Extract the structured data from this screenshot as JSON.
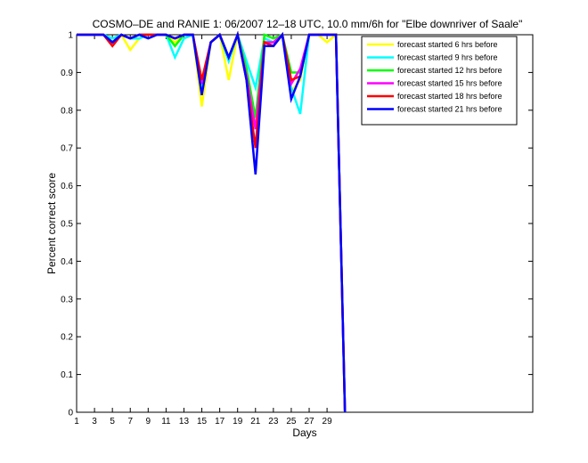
{
  "chart_data": {
    "type": "line",
    "title": "COSMO–DE and RANIE 1: 06/2007 12–18 UTC, 10.0 mm/6h for \"Elbe downriver of Saale\"",
    "xlabel": "Days",
    "ylabel": "Percent correct score",
    "xlim": [
      1,
      52
    ],
    "ylim": [
      0,
      1
    ],
    "xticks": [
      1,
      3,
      5,
      7,
      9,
      11,
      13,
      15,
      17,
      19,
      21,
      23,
      25,
      27,
      29
    ],
    "yticks": [
      0,
      0.1,
      0.2,
      0.3,
      0.4,
      0.5,
      0.6,
      0.7,
      0.8,
      0.9,
      1
    ],
    "ytick_labels": [
      "0",
      "0.1",
      "0.2",
      "0.3",
      "0.4",
      "0.5",
      "0.6",
      "0.7",
      "0.8",
      "0.9",
      "1"
    ],
    "grid": false,
    "legend_position": "top-right",
    "x": [
      1,
      2,
      3,
      4,
      5,
      6,
      7,
      8,
      9,
      10,
      11,
      12,
      13,
      14,
      15,
      16,
      17,
      18,
      19,
      20,
      21,
      22,
      23,
      24,
      25,
      26,
      27,
      28,
      29,
      30,
      31
    ],
    "series": [
      {
        "name": "forecast started 6 hrs before",
        "color": "#ffff00",
        "values": [
          1,
          1,
          1,
          1,
          0.98,
          1,
          0.96,
          0.99,
          1,
          1,
          1,
          0.98,
          1,
          1,
          0.81,
          0.98,
          1,
          0.88,
          1,
          0.9,
          0.77,
          0.99,
          0.98,
          1,
          0.85,
          0.88,
          1,
          1,
          0.98,
          1,
          0
        ]
      },
      {
        "name": "forecast started 9 hrs before",
        "color": "#00ffff",
        "values": [
          1,
          1,
          1,
          1,
          0.99,
          1,
          0.99,
          0.99,
          1,
          1,
          1,
          0.94,
          0.99,
          1,
          0.86,
          0.98,
          1,
          0.93,
          1,
          0.93,
          0.86,
          0.99,
          0.98,
          1,
          0.86,
          0.79,
          1,
          1,
          1,
          1,
          0
        ]
      },
      {
        "name": "forecast started 12 hrs before",
        "color": "#00ff00",
        "values": [
          1,
          1,
          1,
          1,
          0.98,
          1,
          0.99,
          1,
          1,
          1,
          1,
          0.97,
          1,
          1,
          0.87,
          0.98,
          1,
          0.94,
          1,
          0.91,
          0.78,
          1,
          0.99,
          1,
          0.9,
          0.9,
          1,
          1,
          1,
          1,
          0
        ]
      },
      {
        "name": "forecast started 15 hrs before",
        "color": "#ff00ff",
        "values": [
          1,
          1,
          1,
          1,
          0.98,
          1,
          0.99,
          1,
          1,
          1,
          1,
          0.99,
          1,
          1,
          0.87,
          0.98,
          1,
          0.94,
          1,
          0.89,
          0.75,
          0.98,
          0.98,
          1,
          0.87,
          0.91,
          1,
          1,
          1,
          1,
          0
        ]
      },
      {
        "name": "forecast started 18 hrs before",
        "color": "#ff0000",
        "values": [
          1,
          1,
          1,
          1,
          0.97,
          1,
          0.99,
          1,
          1,
          1,
          1,
          0.99,
          1,
          1,
          0.88,
          0.98,
          1,
          0.94,
          1,
          0.88,
          0.7,
          0.98,
          0.97,
          1,
          0.88,
          0.89,
          1,
          1,
          1,
          1,
          0
        ]
      },
      {
        "name": "forecast started 21 hrs before",
        "color": "#0000ff",
        "values": [
          1,
          1,
          1,
          1,
          0.98,
          1,
          0.99,
          1,
          0.99,
          1,
          1,
          0.99,
          1,
          1,
          0.84,
          0.98,
          1,
          0.94,
          1,
          0.88,
          0.63,
          0.97,
          0.97,
          1,
          0.83,
          0.89,
          1,
          1,
          1,
          1,
          0
        ]
      }
    ]
  }
}
